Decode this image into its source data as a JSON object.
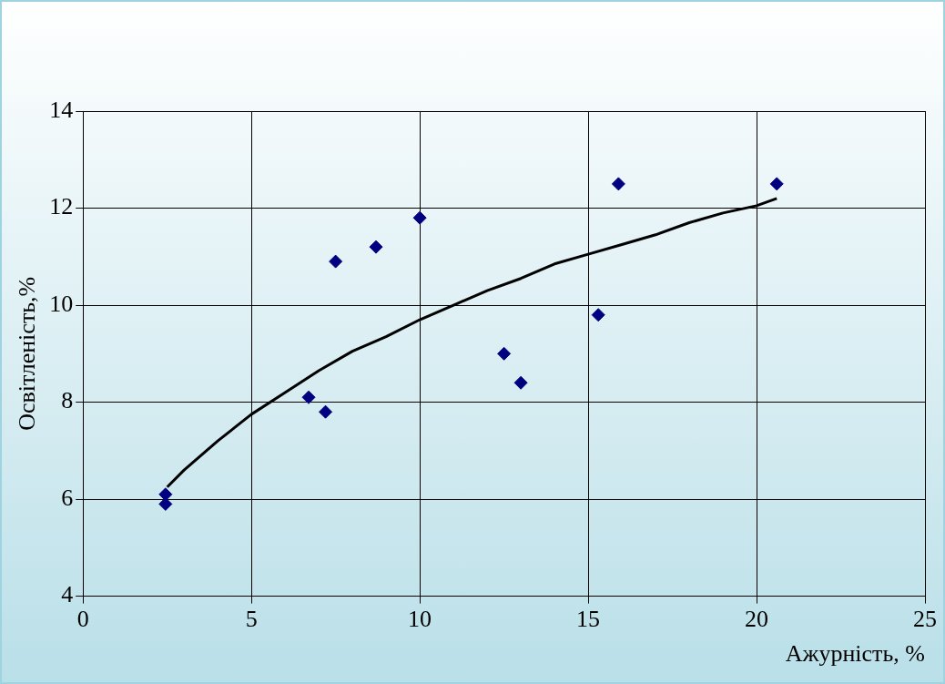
{
  "chart_data": {
    "type": "scatter",
    "xlabel": "Ажурність, %",
    "ylabel": "Освітленість,%",
    "xlim": [
      0,
      25
    ],
    "xticks": [
      0,
      5,
      10,
      15,
      20,
      25
    ],
    "ylim": [
      4,
      14
    ],
    "yticks": [
      4,
      6,
      8,
      10,
      12,
      14
    ],
    "grid": true,
    "marker": "diamond",
    "series": [
      {
        "color": "#000080",
        "x": [
          2.45,
          2.45,
          6.7,
          7.2,
          7.5,
          8.7,
          10.0,
          12.5,
          13.0,
          15.3,
          15.9,
          20.6
        ],
        "values": [
          6.1,
          5.9,
          8.1,
          7.8,
          10.9,
          11.2,
          11.8,
          9.0,
          8.4,
          9.8,
          12.5,
          12.5
        ]
      },
      {
        "type": "line",
        "color": "#000000",
        "marker": "none",
        "x": [
          2.5,
          3,
          4,
          5,
          6,
          7,
          8,
          9,
          10,
          11,
          12,
          13,
          14,
          15,
          16,
          17,
          18,
          19,
          20,
          20.6
        ],
        "values": [
          6.25,
          6.6,
          7.2,
          7.75,
          8.2,
          8.65,
          9.05,
          9.35,
          9.7,
          10.0,
          10.3,
          10.55,
          10.85,
          11.05,
          11.25,
          11.45,
          11.7,
          11.9,
          12.05,
          12.2
        ]
      }
    ]
  }
}
